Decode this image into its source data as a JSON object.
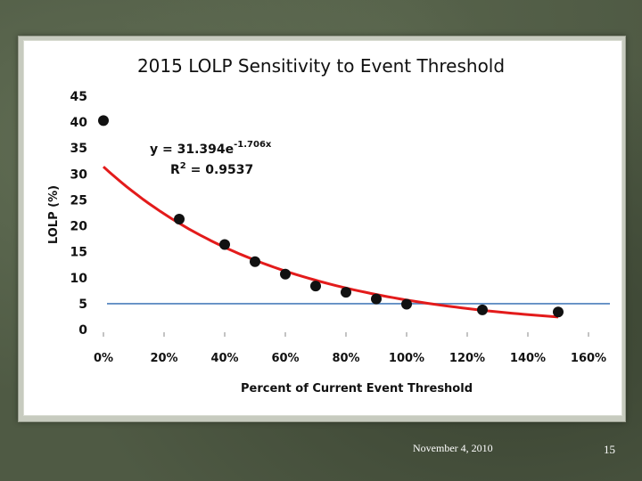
{
  "chart_data": {
    "type": "scatter",
    "title": "2015 LOLP Sensitivity to Event Threshold",
    "xlabel": "Percent of Current Event Threshold",
    "ylabel": "LOLP (%)",
    "x_tick_labels": [
      "0%",
      "20%",
      "40%",
      "60%",
      "80%",
      "100%",
      "120%",
      "140%",
      "160%"
    ],
    "y_tick_labels": [
      "0",
      "5",
      "10",
      "15",
      "20",
      "25",
      "30",
      "35",
      "40",
      "45"
    ],
    "xlim": [
      0,
      1.6
    ],
    "ylim": [
      0,
      45
    ],
    "series": [
      {
        "name": "LOLP",
        "x": [
          0.0,
          0.25,
          0.4,
          0.5,
          0.6,
          0.7,
          0.8,
          0.9,
          1.0,
          1.25,
          1.5
        ],
        "y": [
          40.3,
          21.3,
          16.4,
          13.1,
          10.7,
          8.4,
          7.2,
          5.9,
          4.9,
          3.8,
          3.4
        ],
        "marker_color": "#111111"
      }
    ],
    "trendline": {
      "type": "exponential",
      "a": 31.394,
      "b": -1.706,
      "x_range": [
        0,
        1.5
      ],
      "color": "#e31b1b",
      "equation_text": {
        "prefix": "y = 31.394e",
        "exponent": "-1.706x"
      },
      "r2_text": {
        "prefix": "R",
        "sup": "2",
        "suffix": " = 0.9537"
      }
    },
    "reference_line": {
      "y": 5,
      "color": "#4a7ebb"
    },
    "grid": false
  },
  "footer": {
    "date": "November 4, 2010",
    "page": "15"
  }
}
